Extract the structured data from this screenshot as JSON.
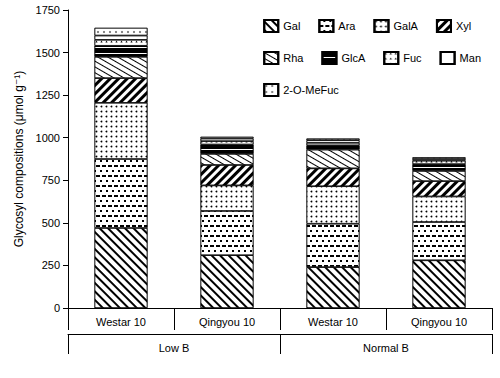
{
  "chart_data": {
    "type": "bar",
    "stacked": true,
    "y_label": "Glycosyl compositions (μmol g⁻¹)",
    "categories": [
      "Westar 10",
      "Qingyou 10",
      "Westar 10",
      "Qingyou 10"
    ],
    "groups": [
      "Low B",
      "Normal B"
    ],
    "ylim": [
      0,
      1750
    ],
    "yticks": [
      0,
      250,
      500,
      750,
      1000,
      1250,
      1500,
      1750
    ],
    "grid": false,
    "legend": "upper right",
    "series": [
      {
        "name": "Gal",
        "color": "#ffffff",
        "values": [
          470,
          310,
          240,
          280
        ]
      },
      {
        "name": "Ara",
        "color": "#ffffff",
        "values": [
          405,
          260,
          255,
          225
        ]
      },
      {
        "name": "GalA",
        "color": "#ffffff",
        "values": [
          330,
          150,
          220,
          150
        ]
      },
      {
        "name": "Xyl",
        "color": "#ffffff",
        "values": [
          145,
          120,
          105,
          90
        ]
      },
      {
        "name": "Rha",
        "color": "#ffffff",
        "values": [
          125,
          65,
          110,
          60
        ]
      },
      {
        "name": "GlcA",
        "color": "#ffffff",
        "values": [
          65,
          55,
          25,
          40
        ]
      },
      {
        "name": "Fuc",
        "color": "#ffffff",
        "values": [
          35,
          20,
          15,
          20
        ]
      },
      {
        "name": "Man",
        "color": "#ffffff",
        "values": [
          25,
          15,
          15,
          10
        ]
      },
      {
        "name": "2-O-MeFuc",
        "color": "#ffffff",
        "values": [
          45,
          10,
          10,
          10
        ]
      }
    ]
  }
}
